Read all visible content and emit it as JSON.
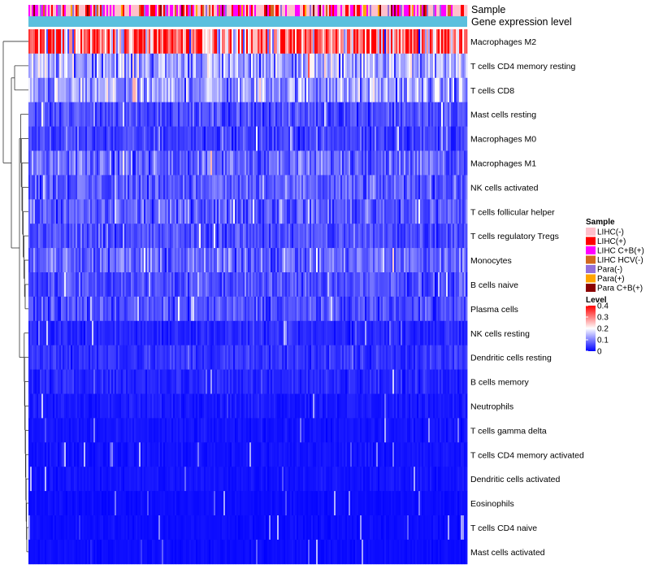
{
  "chart_data": {
    "type": "heatmap",
    "annotation_rows": [
      "Sample",
      "Gene expression level"
    ],
    "rows": [
      {
        "label": "Macrophages M2",
        "mean": 0.31
      },
      {
        "label": "T cells CD4 memory resting",
        "mean": 0.13
      },
      {
        "label": "T cells CD8",
        "mean": 0.12
      },
      {
        "label": "Mast cells resting",
        "mean": 0.06
      },
      {
        "label": "Macrophages M0",
        "mean": 0.05
      },
      {
        "label": "Macrophages M1",
        "mean": 0.08
      },
      {
        "label": "NK cells activated",
        "mean": 0.07
      },
      {
        "label": "T cells follicular helper",
        "mean": 0.07
      },
      {
        "label": "T cells regulatory  Tregs",
        "mean": 0.06
      },
      {
        "label": "Monocytes",
        "mean": 0.08
      },
      {
        "label": "B cells naive",
        "mean": 0.06
      },
      {
        "label": "Plasma cells",
        "mean": 0.06
      },
      {
        "label": "NK cells resting",
        "mean": 0.03
      },
      {
        "label": "Dendritic cells resting",
        "mean": 0.04
      },
      {
        "label": "B cells memory",
        "mean": 0.03
      },
      {
        "label": "Neutrophils",
        "mean": 0.02
      },
      {
        "label": "T cells gamma delta",
        "mean": 0.015
      },
      {
        "label": "T cells CD4 memory activated",
        "mean": 0.015
      },
      {
        "label": "Dendritic cells activated",
        "mean": 0.015
      },
      {
        "label": "Eosinophils",
        "mean": 0.01
      },
      {
        "label": "T cells CD4 naive",
        "mean": 0.01
      },
      {
        "label": "Mast cells activated",
        "mean": 0.01
      }
    ],
    "legend": {
      "sample": {
        "title": "Sample",
        "entries": [
          {
            "label": "LIHC(-)",
            "color": "#FFC0CB"
          },
          {
            "label": "LIHC(+)",
            "color": "#FF0000"
          },
          {
            "label": "LIHC C+B(+)",
            "color": "#FF00FF"
          },
          {
            "label": "LIHC HCV(-)",
            "color": "#D2691E"
          },
          {
            "label": "Para(-)",
            "color": "#9370DB"
          },
          {
            "label": "Para(+)",
            "color": "#FFA500"
          },
          {
            "label": "Para C+B(+)",
            "color": "#8B0000"
          }
        ]
      },
      "level": {
        "title": "Level",
        "ticks": [
          {
            "label": "0.4",
            "value": 0.4
          },
          {
            "label": "0.3",
            "value": 0.3
          },
          {
            "label": "0.2",
            "value": 0.2
          },
          {
            "label": "0.1",
            "value": 0.1
          },
          {
            "label": "0",
            "value": 0
          }
        ],
        "colors": [
          "#0000FF",
          "#FFFFFF",
          "#FF0000"
        ],
        "range": [
          0,
          0.4
        ]
      }
    },
    "expression_level_color": "#5BC0DE"
  }
}
